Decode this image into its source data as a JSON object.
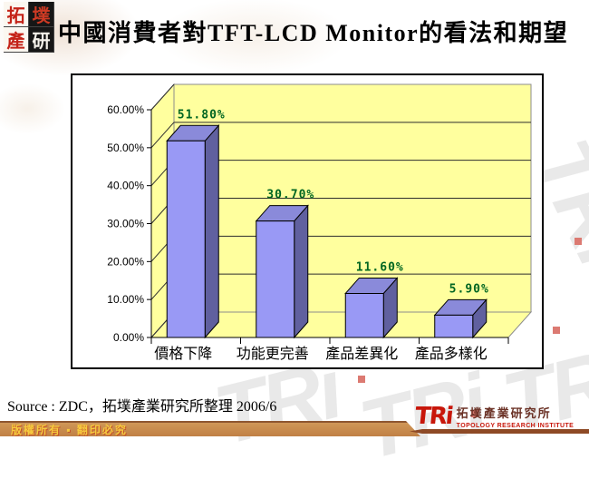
{
  "header": {
    "title": "中國消費者對TFT-LCD Monitor的看法和期望",
    "logo_blocks": [
      "拓",
      "墣",
      "產",
      "研"
    ]
  },
  "chart_data": {
    "type": "bar",
    "style": "3d-column",
    "title": "",
    "xlabel": "",
    "ylabel": "",
    "categories": [
      "價格下降",
      "功能更完善",
      "產品差異化",
      "產品多樣化"
    ],
    "values": [
      51.8,
      30.7,
      11.6,
      5.9
    ],
    "value_labels": [
      "51.80%",
      "30.70%",
      "11.60%",
      "5.90%"
    ],
    "ytick_labels": [
      "0.00%",
      "10.00%",
      "20.00%",
      "30.00%",
      "40.00%",
      "50.00%",
      "60.00%"
    ],
    "ylim": [
      0,
      60
    ],
    "grid": true,
    "legend_position": "none",
    "colors": {
      "wall": "#FFFF9E",
      "wall_border": "#8C8C8C",
      "gridline": "#2E2E2E",
      "bar_front": "#9999F5",
      "bar_top": "#8A8ADA",
      "bar_side": "#60609F",
      "bar_outline": "#000000",
      "value_label": "#006622"
    }
  },
  "source_line": "Source : ZDC，拓墣產業研究所整理 2006/6",
  "footer": {
    "copyright": "版權所有 ▪ 翻印必究",
    "tri_mark": "TRi",
    "tri_cn": "拓墣產業研究所",
    "tri_en": "TOPOLOGY RESEARCH INSTITUTE"
  },
  "watermark": {
    "text": "TRi"
  }
}
